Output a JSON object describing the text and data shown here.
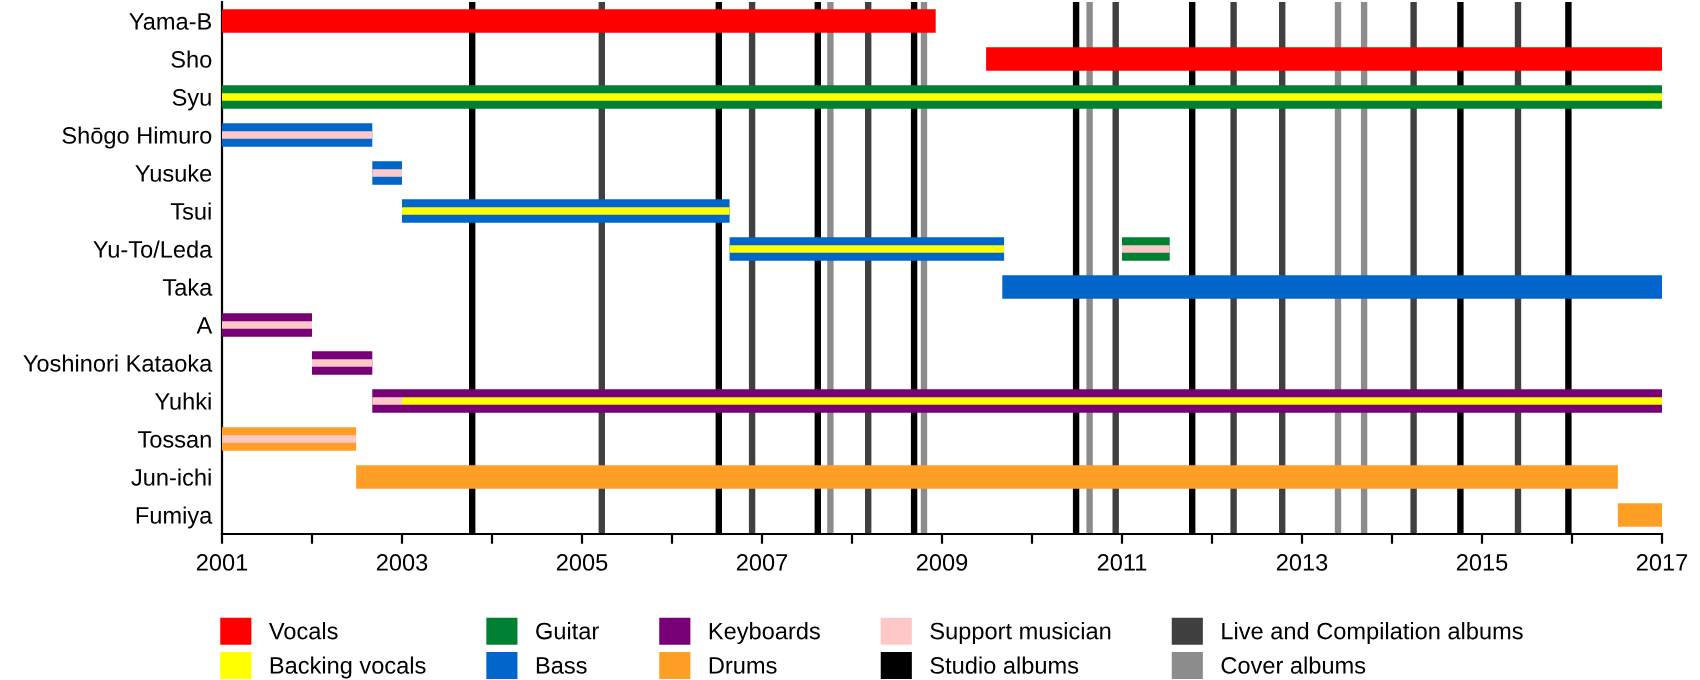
{
  "chart_data": {
    "type": "bar",
    "orientation": "horizontal",
    "categories": [
      "Yama-B",
      "Sho",
      "Syu",
      "Shōgo Himuro",
      "Yusuke",
      "Tsui",
      "Yu-To/Leda",
      "Taka",
      "A",
      "Yoshinori Kataoka",
      "Yuhki",
      "Tossan",
      "Jun-ichi",
      "Fumiya"
    ],
    "series": [
      {
        "name": "Vocals",
        "color": "#ff0000",
        "base": [
          2001,
          2009.49,
          null,
          null,
          null,
          null,
          null,
          null,
          null,
          null,
          null,
          null,
          null,
          null
        ],
        "values": [
          7.93,
          7.51,
          null,
          null,
          null,
          null,
          null,
          null,
          null,
          null,
          null,
          null,
          null,
          null
        ]
      },
      {
        "name": "Backing vocals",
        "color": "#ffff00",
        "base": [
          null,
          null,
          2001,
          null,
          null,
          2003.0,
          2006.64,
          null,
          null,
          null,
          2003.0,
          null,
          null,
          null
        ],
        "values": [
          null,
          null,
          16,
          null,
          null,
          3.64,
          3.05,
          null,
          null,
          null,
          14.0,
          null,
          null,
          null
        ]
      },
      {
        "name": "Guitar",
        "color": "#008033",
        "base": [
          null,
          null,
          2001,
          null,
          null,
          null,
          2011.0,
          null,
          null,
          null,
          null,
          null,
          null,
          null
        ],
        "values": [
          null,
          null,
          16,
          null,
          null,
          null,
          0.53,
          null,
          null,
          null,
          null,
          null,
          null,
          null
        ]
      },
      {
        "name": "Bass",
        "color": "#0066cc",
        "base": [
          null,
          null,
          null,
          2001,
          2002.67,
          2003.0,
          2006.64,
          2009.67,
          null,
          null,
          null,
          null,
          null,
          null
        ],
        "values": [
          null,
          null,
          null,
          1.67,
          0.33,
          3.64,
          3.05,
          7.33,
          null,
          null,
          null,
          null,
          null,
          null
        ]
      },
      {
        "name": "Keyboards",
        "color": "#770077",
        "base": [
          null,
          null,
          null,
          null,
          null,
          null,
          null,
          null,
          2001,
          2002.0,
          2002.67,
          null,
          null,
          null
        ],
        "values": [
          null,
          null,
          null,
          null,
          null,
          null,
          null,
          null,
          1.0,
          0.67,
          14.33,
          null,
          null,
          null
        ]
      },
      {
        "name": "Drums",
        "color": "#ff9f26",
        "base": [
          null,
          null,
          null,
          null,
          null,
          null,
          null,
          null,
          null,
          null,
          null,
          2001,
          2002.49,
          2016.51
        ],
        "values": [
          null,
          null,
          null,
          null,
          null,
          null,
          null,
          null,
          null,
          null,
          null,
          1.49,
          14.02,
          0.49
        ]
      },
      {
        "name": "Support musician",
        "color": "#ffc8c8",
        "base": [
          null,
          null,
          null,
          2001,
          2002.67,
          null,
          2011.0,
          null,
          2001,
          2002.0,
          2002.67,
          2001,
          null,
          null
        ],
        "values": [
          null,
          null,
          null,
          1.67,
          0.33,
          null,
          0.53,
          null,
          1.0,
          0.67,
          0.33,
          1.49,
          null,
          null
        ]
      }
    ],
    "ref_lines": [
      {
        "axis": "x",
        "value": 2003.78,
        "label": "Studio albums",
        "color": "#000000"
      },
      {
        "axis": "x",
        "value": 2005.22,
        "label": "Live and Compilation albums",
        "color": "#404040"
      },
      {
        "axis": "x",
        "value": 2006.52,
        "color": "#000000"
      },
      {
        "axis": "x",
        "value": 2006.89,
        "color": "#404040"
      },
      {
        "axis": "x",
        "value": 2007.62,
        "color": "#000000"
      },
      {
        "axis": "x",
        "value": 2007.76,
        "label": "Cover albums",
        "color": "#8c8c8c"
      },
      {
        "axis": "x",
        "value": 2008.18,
        "color": "#404040"
      },
      {
        "axis": "x",
        "value": 2008.69,
        "color": "#000000"
      },
      {
        "axis": "x",
        "value": 2008.8,
        "color": "#8c8c8c"
      },
      {
        "axis": "x",
        "value": 2010.49,
        "color": "#000000"
      },
      {
        "axis": "x",
        "value": 2010.64,
        "color": "#8c8c8c"
      },
      {
        "axis": "x",
        "value": 2010.93,
        "color": "#404040"
      },
      {
        "axis": "x",
        "value": 2011.78,
        "color": "#000000"
      },
      {
        "axis": "x",
        "value": 2012.24,
        "color": "#404040"
      },
      {
        "axis": "x",
        "value": 2012.78,
        "color": "#404040"
      },
      {
        "axis": "x",
        "value": 2013.4,
        "color": "#8c8c8c"
      },
      {
        "axis": "x",
        "value": 2013.69,
        "color": "#8c8c8c"
      },
      {
        "axis": "x",
        "value": 2014.24,
        "color": "#404040"
      },
      {
        "axis": "x",
        "value": 2014.76,
        "color": "#000000"
      },
      {
        "axis": "x",
        "value": 2015.4,
        "color": "#404040"
      },
      {
        "axis": "x",
        "value": 2015.96,
        "color": "#000000"
      }
    ],
    "xlim": [
      2001,
      2017
    ],
    "xticks": [
      2001,
      {
        "value": 2002,
        "label": null
      },
      2003,
      {
        "value": 2004,
        "label": null
      },
      2005,
      {
        "value": 2006,
        "label": null
      },
      2007,
      {
        "value": 2008,
        "label": null
      },
      2009,
      {
        "value": 2010,
        "label": null
      },
      2011,
      {
        "value": 2012,
        "label": null
      },
      2013,
      {
        "value": 2014,
        "label": null
      },
      2015,
      {
        "value": 2016,
        "label": null
      },
      2017
    ],
    "grid": false,
    "legend": "bottom"
  }
}
